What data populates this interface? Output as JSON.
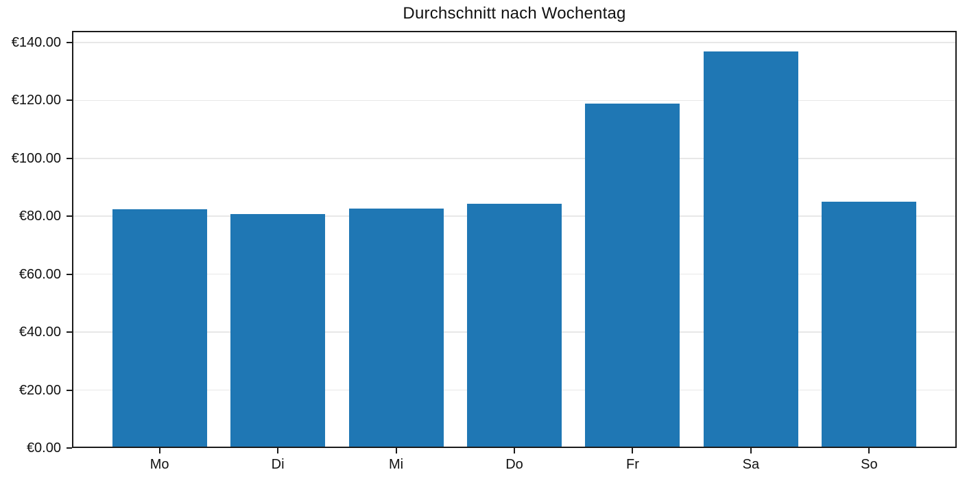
{
  "chart_data": {
    "type": "bar",
    "title": "Durchschnitt nach Wochentag",
    "categories": [
      "Mo",
      "Di",
      "Mi",
      "Do",
      "Fr",
      "Sa",
      "So"
    ],
    "values": [
      82.5,
      80.7,
      82.7,
      84.2,
      119.0,
      137.0,
      85.0
    ],
    "y_tick_values": [
      0,
      20,
      40,
      60,
      80,
      100,
      120,
      140
    ],
    "y_tick_labels": [
      "€0.00",
      "€20.00",
      "€40.00",
      "€60.00",
      "€80.00",
      "€100.00",
      "€120.00",
      "€140.00"
    ],
    "xlabel": "",
    "ylabel": "",
    "ylim": [
      0,
      144
    ],
    "xlim": [
      -0.74,
      6.74
    ],
    "bar_width": 0.8,
    "bar_color": "#1f77b4",
    "grid": "horizontal",
    "grid_color": "#e7e7e7",
    "axis_color": "#1a1a1a",
    "background": "#ffffff",
    "legend": "none"
  }
}
